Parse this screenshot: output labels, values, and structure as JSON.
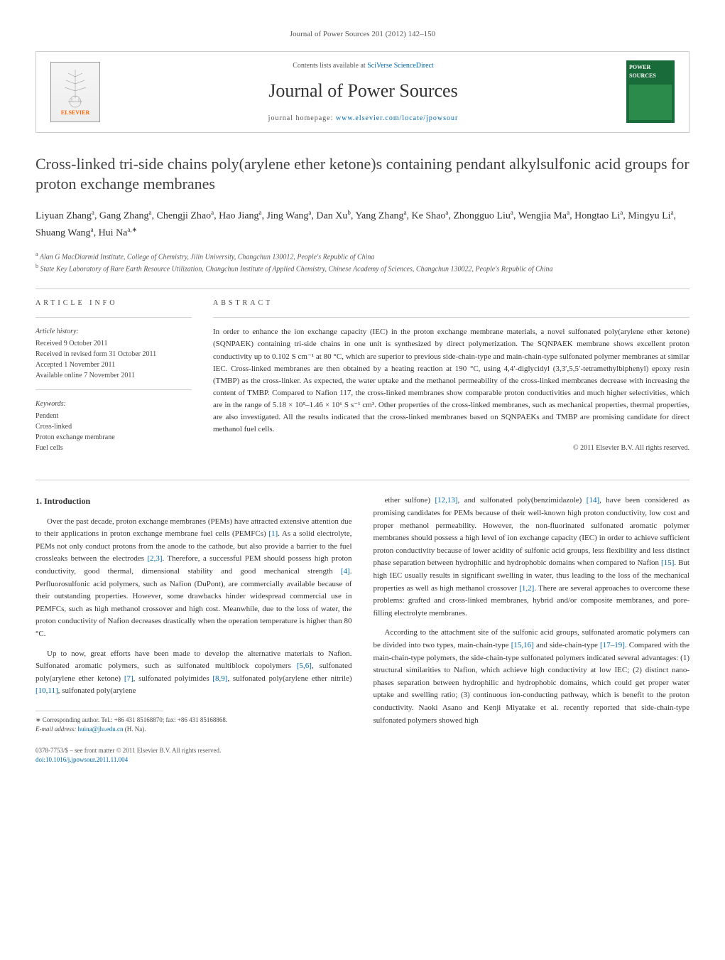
{
  "header": {
    "citation": "Journal of Power Sources 201 (2012) 142–150",
    "contents_line": "Contents lists available at",
    "contents_link": "SciVerse ScienceDirect",
    "journal_name": "Journal of Power Sources",
    "homepage_label": "journal homepage:",
    "homepage_url": "www.elsevier.com/locate/jpowsour",
    "publisher_logo_text": "ELSEVIER",
    "cover_title": "POWER SOURCES"
  },
  "article": {
    "title": "Cross-linked tri-side chains poly(arylene ether ketone)s containing pendant alkylsulfonic acid groups for proton exchange membranes",
    "authors": "Liyuan Zhang<sup>a</sup>, Gang Zhang<sup>a</sup>, Chengji Zhao<sup>a</sup>, Hao Jiang<sup>a</sup>, Jing Wang<sup>a</sup>, Dan Xu<sup>b</sup>, Yang Zhang<sup>a</sup>, Ke Shao<sup>a</sup>, Zhongguo Liu<sup>a</sup>, Wengjia Ma<sup>a</sup>, Hongtao Li<sup>a</sup>, Mingyu Li<sup>a</sup>, Shuang Wang<sup>a</sup>, Hui Na<sup>a,∗</sup>",
    "affiliations": {
      "a": "Alan G MacDiarmid Institute, College of Chemistry, Jilin University, Changchun 130012, People's Republic of China",
      "b": "State Key Laboratory of Rare Earth Resource Utilization, Changchun Institute of Applied Chemistry, Chinese Academy of Sciences, Changchun 130022, People's Republic of China"
    }
  },
  "article_info": {
    "heading": "ARTICLE INFO",
    "history_label": "Article history:",
    "received": "Received 9 October 2011",
    "revised": "Received in revised form 31 October 2011",
    "accepted": "Accepted 1 November 2011",
    "online": "Available online 7 November 2011",
    "keywords_label": "Keywords:",
    "keywords": [
      "Pendent",
      "Cross-linked",
      "Proton exchange membrane",
      "Fuel cells"
    ]
  },
  "abstract": {
    "heading": "ABSTRACT",
    "text": "In order to enhance the ion exchange capacity (IEC) in the proton exchange membrane materials, a novel sulfonated poly(arylene ether ketone) (SQNPAEK) containing tri-side chains in one unit is synthesized by direct polymerization. The SQNPAEK membrane shows excellent proton conductivity up to 0.102 S cm⁻¹ at 80 °C, which are superior to previous side-chain-type and main-chain-type sulfonated polymer membranes at similar IEC. Cross-linked membranes are then obtained by a heating reaction at 190 °C, using 4,4′-diglycidyl (3,3′,5,5′-tetramethylbiphenyl) epoxy resin (TMBP) as the cross-linker. As expected, the water uptake and the methanol permeability of the cross-linked membranes decrease with increasing the content of TMBP. Compared to Nafion 117, the cross-linked membranes show comparable proton conductivities and much higher selectivities, which are in the range of 5.18 × 10⁵–1.46 × 10⁶ S s⁻¹ cm³. Other properties of the cross-linked membranes, such as mechanical properties, thermal properties, are also investigated. All the results indicated that the cross-linked membranes based on SQNPAEKs and TMBP are promising candidate for direct methanol fuel cells.",
    "copyright": "© 2011 Elsevier B.V. All rights reserved."
  },
  "body": {
    "section_number": "1.",
    "section_title": "Introduction",
    "col1": {
      "p1": "Over the past decade, proton exchange membranes (PEMs) have attracted extensive attention due to their applications in proton exchange membrane fuel cells (PEMFCs) [1]. As a solid electrolyte, PEMs not only conduct protons from the anode to the cathode, but also provide a barrier to the fuel crossleaks between the electrodes [2,3]. Therefore, a successful PEM should possess high proton conductivity, good thermal, dimensional stability and good mechanical strength [4]. Perfluorosulfonic acid polymers, such as Nafion (DuPont), are commercially available because of their outstanding properties. However, some drawbacks hinder widespread commercial use in PEMFCs, such as high methanol crossover and high cost. Meanwhile, due to the loss of water, the proton conductivity of Nafion decreases drastically when the operation temperature is higher than 80 °C.",
      "p2": "Up to now, great efforts have been made to develop the alternative materials to Nafion. Sulfonated aromatic polymers, such as sulfonated multiblock copolymers [5,6], sulfonated poly(arylene ether ketone) [7], sulfonated polyimides [8,9], sulfonated poly(arylene ether nitrile) [10,11], sulfonated poly(arylene"
    },
    "col2": {
      "p1": "ether sulfone) [12,13], and sulfonated poly(benzimidazole) [14], have been considered as promising candidates for PEMs because of their well-known high proton conductivity, low cost and proper methanol permeability. However, the non-fluorinated sulfonated aromatic polymer membranes should possess a high level of ion exchange capacity (IEC) in order to achieve sufficient proton conductivity because of lower acidity of sulfonic acid groups, less flexibility and less distinct phase separation between hydrophilic and hydrophobic domains when compared to Nafion [15]. But high IEC usually results in significant swelling in water, thus leading to the loss of the mechanical properties as well as high methanol crossover [1,2]. There are several approaches to overcome these problems: grafted and cross-linked membranes, hybrid and/or composite membranes, and pore-filling electrolyte membranes.",
      "p2": "According to the attachment site of the sulfonic acid groups, sulfonated aromatic polymers can be divided into two types, main-chain-type [15,16] and side-chain-type [17–19]. Compared with the main-chain-type polymers, the side-chain-type sulfonated polymers indicated several advantages: (1) structural similarities to Nafion, which achieve high conductivity at low IEC; (2) distinct nano-phases separation between hydrophilic and hydrophobic domains, which could get proper water uptake and swelling ratio; (3) continuous ion-conducting pathway, which is benefit to the proton conductivity. Naoki Asano and Kenji Miyatake et al. recently reported that side-chain-type sulfonated polymers showed high"
    }
  },
  "correspondence": {
    "label": "∗ Corresponding author. Tel.: +86 431 85168870; fax: +86 431 85168868.",
    "email_label": "E-mail address:",
    "email": "huina@jlu.edu.cn",
    "email_name": "(H. Na)."
  },
  "footer": {
    "line1": "0378-7753/$ – see front matter © 2011 Elsevier B.V. All rights reserved.",
    "doi": "doi:10.1016/j.jpowsour.2011.11.004"
  },
  "colors": {
    "link": "#0066aa",
    "text": "#333333",
    "muted": "#555555",
    "border": "#cccccc",
    "cover_bg": "#1a6b3a"
  },
  "typography": {
    "title_fontsize": 22,
    "journal_fontsize": 26,
    "body_fontsize": 11,
    "abstract_fontsize": 11,
    "info_fontsize": 10,
    "footer_fontsize": 9
  }
}
